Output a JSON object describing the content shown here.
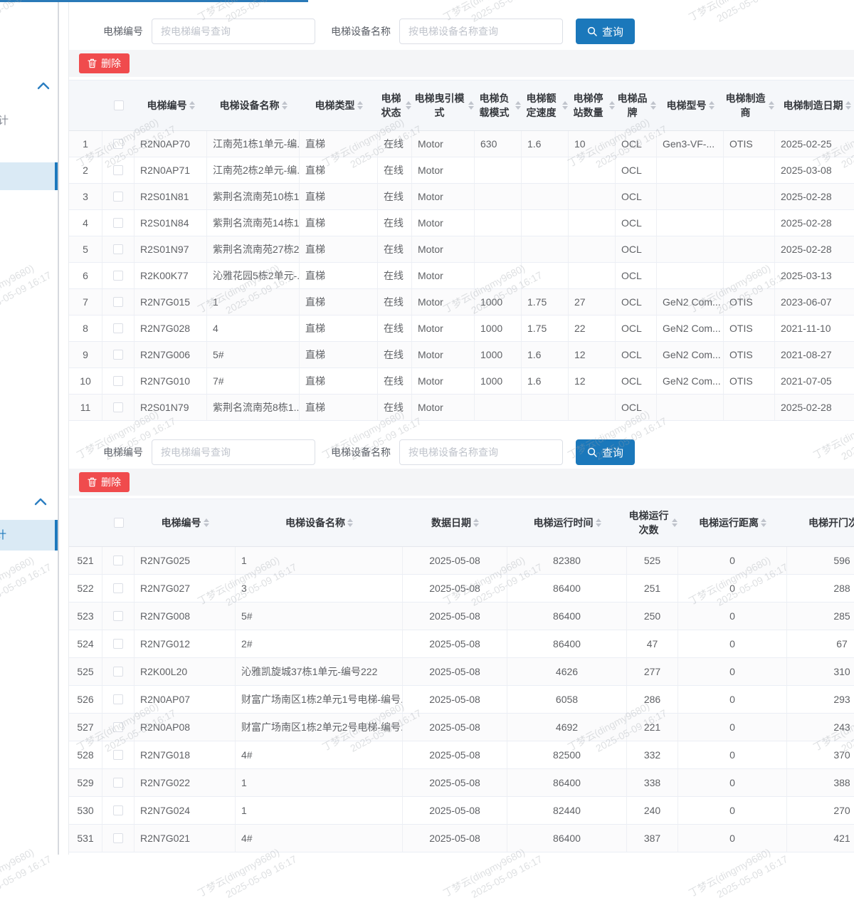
{
  "watermark": {
    "line1": "丁梦云(dingmy9680)",
    "line2": "2025-05-09 16:17"
  },
  "colors": {
    "accent_blue": "#1b78bb",
    "danger_red": "#f04b4d",
    "sidebar_selected_bg": "#daeaf5",
    "sidebar_selected_bar": "#1d79bd",
    "top_line": "#2a7ab8"
  },
  "sidebar": {
    "item_partial_top": "计",
    "item_partial_bottom": "计"
  },
  "search": {
    "code_label": "电梯编号",
    "code_placeholder": "按电梯编号查询",
    "name_label": "电梯设备名称",
    "name_placeholder": "按电梯设备名称查询",
    "query_button": "查询"
  },
  "toolbar": {
    "delete_button": "删除"
  },
  "table1": {
    "columns": [
      "电梯编号",
      "电梯设备名称",
      "电梯类型",
      "电梯状态",
      "电梯曳引模式",
      "电梯负载模式",
      "电梯额定速度",
      "电梯停站数量",
      "电梯品牌",
      "电梯型号",
      "电梯制造商",
      "电梯制造日期"
    ],
    "rows": [
      {
        "no": "1",
        "cells": [
          "R2N0AP70",
          "江南苑1栋1单元-编...",
          "直梯",
          "在线",
          "Motor",
          "630",
          "1.6",
          "10",
          "OCL",
          "Gen3-VF-...",
          "OTIS",
          "2025-02-25"
        ]
      },
      {
        "no": "2",
        "cells": [
          "R2N0AP71",
          "江南苑2栋2单元-编...",
          "直梯",
          "在线",
          "Motor",
          "",
          "",
          "",
          "OCL",
          "",
          "",
          "2025-03-08"
        ]
      },
      {
        "no": "3",
        "cells": [
          "R2S01N81",
          "紫荆名流南苑10栋1...",
          "直梯",
          "在线",
          "Motor",
          "",
          "",
          "",
          "OCL",
          "",
          "",
          "2025-02-28"
        ]
      },
      {
        "no": "4",
        "cells": [
          "R2S01N84",
          "紫荆名流南苑14栋1...",
          "直梯",
          "在线",
          "Motor",
          "",
          "",
          "",
          "OCL",
          "",
          "",
          "2025-02-28"
        ]
      },
      {
        "no": "5",
        "cells": [
          "R2S01N97",
          "紫荆名流南苑27栋2...",
          "直梯",
          "在线",
          "Motor",
          "",
          "",
          "",
          "OCL",
          "",
          "",
          "2025-02-28"
        ]
      },
      {
        "no": "6",
        "cells": [
          "R2K00K77",
          "沁雅花园5栋2单元-...",
          "直梯",
          "在线",
          "Motor",
          "",
          "",
          "",
          "OCL",
          "",
          "",
          "2025-03-13"
        ]
      },
      {
        "no": "7",
        "cells": [
          "R2N7G015",
          "1",
          "直梯",
          "在线",
          "Motor",
          "1000",
          "1.75",
          "27",
          "OCL",
          "GeN2 Com...",
          "OTIS",
          "2023-06-07"
        ]
      },
      {
        "no": "8",
        "cells": [
          "R2N7G028",
          "4",
          "直梯",
          "在线",
          "Motor",
          "1000",
          "1.75",
          "22",
          "OCL",
          "GeN2 Com...",
          "OTIS",
          "2021-11-10"
        ]
      },
      {
        "no": "9",
        "cells": [
          "R2N7G006",
          "5#",
          "直梯",
          "在线",
          "Motor",
          "1000",
          "1.6",
          "12",
          "OCL",
          "GeN2 Com...",
          "OTIS",
          "2021-08-27"
        ]
      },
      {
        "no": "10",
        "cells": [
          "R2N7G010",
          "7#",
          "直梯",
          "在线",
          "Motor",
          "1000",
          "1.6",
          "12",
          "OCL",
          "GeN2 Com...",
          "OTIS",
          "2021-07-05"
        ]
      },
      {
        "no": "11",
        "cells": [
          "R2S01N79",
          "紫荆名流南苑8栋1...",
          "直梯",
          "在线",
          "Motor",
          "",
          "",
          "",
          "OCL",
          "",
          "",
          "2025-02-28"
        ]
      }
    ]
  },
  "table2": {
    "columns": [
      "电梯编号",
      "电梯设备名称",
      "数据日期",
      "电梯运行时间",
      "电梯运行次数",
      "电梯运行距离",
      "电梯开门次数"
    ],
    "rows": [
      {
        "no": "521",
        "cells": [
          "R2N7G025",
          "1",
          "2025-05-08",
          "82380",
          "525",
          "0",
          "596"
        ]
      },
      {
        "no": "522",
        "cells": [
          "R2N7G027",
          "3",
          "2025-05-08",
          "86400",
          "251",
          "0",
          "288"
        ]
      },
      {
        "no": "523",
        "cells": [
          "R2N7G008",
          "5#",
          "2025-05-08",
          "86400",
          "250",
          "0",
          "285"
        ]
      },
      {
        "no": "524",
        "cells": [
          "R2N7G012",
          "2#",
          "2025-05-08",
          "86400",
          "47",
          "0",
          "67"
        ]
      },
      {
        "no": "525",
        "cells": [
          "R2K00L20",
          "沁雅凯旋城37栋1单元-编号222",
          "2025-05-08",
          "4626",
          "277",
          "0",
          "310"
        ]
      },
      {
        "no": "526",
        "cells": [
          "R2N0AP07",
          "财富广场南区1栋2单元1号电梯-编号...",
          "2025-05-08",
          "6058",
          "286",
          "0",
          "293"
        ]
      },
      {
        "no": "527",
        "cells": [
          "R2N0AP08",
          "财富广场南区1栋2单元2号电梯-编号...",
          "2025-05-08",
          "4692",
          "221",
          "0",
          "243"
        ]
      },
      {
        "no": "528",
        "cells": [
          "R2N7G018",
          "4#",
          "2025-05-08",
          "82500",
          "332",
          "0",
          "370"
        ]
      },
      {
        "no": "529",
        "cells": [
          "R2N7G022",
          "1",
          "2025-05-08",
          "86400",
          "338",
          "0",
          "388"
        ]
      },
      {
        "no": "530",
        "cells": [
          "R2N7G024",
          "1",
          "2025-05-08",
          "82440",
          "240",
          "0",
          "270"
        ]
      },
      {
        "no": "531",
        "cells": [
          "R2N7G021",
          "4#",
          "2025-05-08",
          "86400",
          "387",
          "0",
          "421"
        ]
      }
    ]
  }
}
